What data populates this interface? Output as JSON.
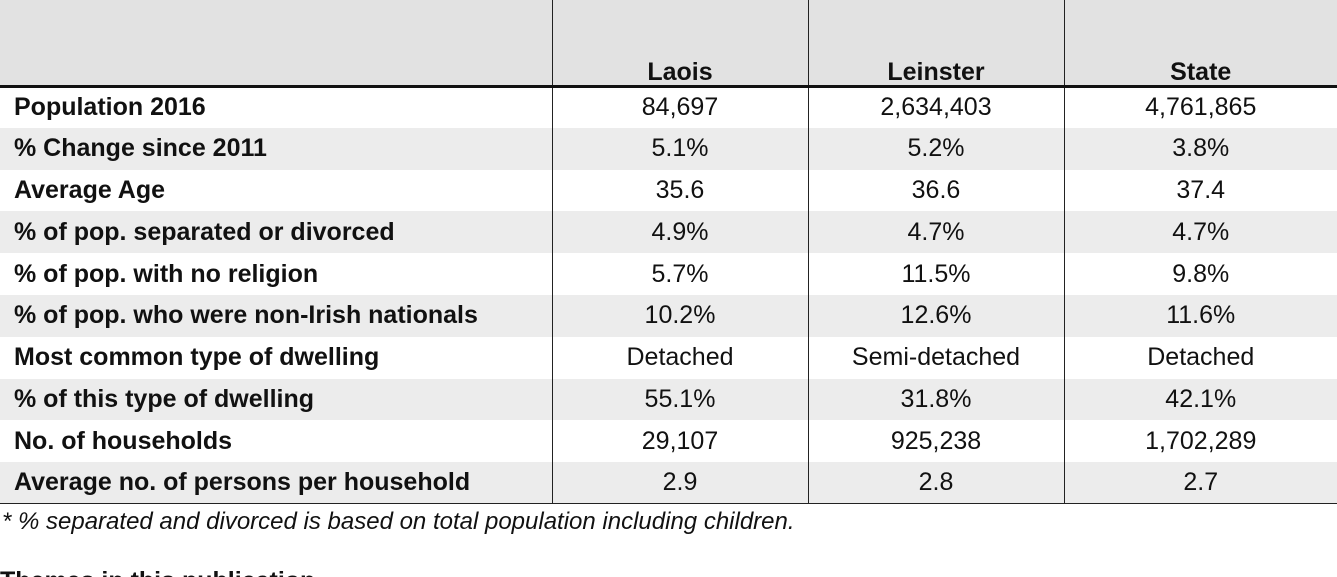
{
  "table": {
    "columns": [
      "",
      "Laois",
      "Leinster",
      "State"
    ],
    "rows": [
      {
        "label": "Population 2016",
        "values": [
          "84,697",
          "2,634,403",
          "4,761,865"
        ]
      },
      {
        "label": "% Change since 2011",
        "values": [
          "5.1%",
          "5.2%",
          "3.8%"
        ]
      },
      {
        "label": "Average Age",
        "values": [
          "35.6",
          "36.6",
          "37.4"
        ]
      },
      {
        "label": "% of pop. separated or divorced",
        "values": [
          "4.9%",
          "4.7%",
          "4.7%"
        ]
      },
      {
        "label": "% of pop. with no religion",
        "values": [
          "5.7%",
          "11.5%",
          "9.8%"
        ]
      },
      {
        "label": "% of pop. who were non-Irish nationals",
        "values": [
          "10.2%",
          "12.6%",
          "11.6%"
        ]
      },
      {
        "label": "Most common type of dwelling",
        "values": [
          "Detached",
          "Semi-detached",
          "Detached"
        ]
      },
      {
        "label": "% of this type of dwelling",
        "values": [
          "55.1%",
          "31.8%",
          "42.1%"
        ]
      },
      {
        "label": "No. of households",
        "values": [
          "29,107",
          "925,238",
          "1,702,289"
        ]
      },
      {
        "label": "Average no. of persons per household",
        "values": [
          "2.9",
          "2.8",
          "2.7"
        ]
      }
    ]
  },
  "footnote": "* % separated and divorced is based on total population including children.",
  "next_heading": "Themes in this publication",
  "colors": {
    "header_bg": "#e2e2e2",
    "stripe_bg": "#ececec",
    "rule": "#111111"
  }
}
